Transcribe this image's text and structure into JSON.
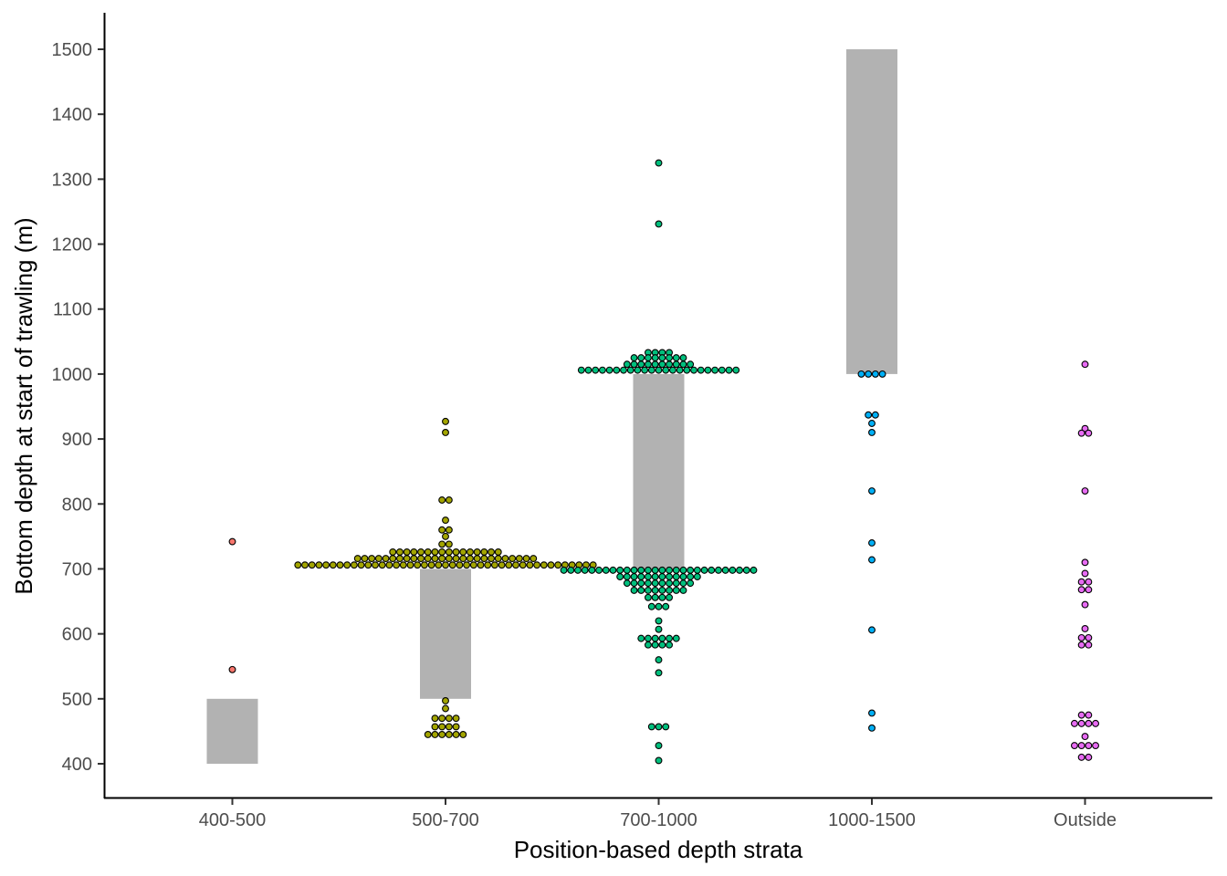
{
  "chart_data": {
    "type": "dotplot",
    "xlabel": "Position-based depth strata",
    "ylabel": "Bottom depth at start of trawling (m)",
    "ylim": [
      345,
      1555
    ],
    "yticks": [
      400,
      500,
      600,
      700,
      800,
      900,
      1000,
      1100,
      1200,
      1300,
      1400,
      1500
    ],
    "grid": false,
    "legend": "none",
    "categories": [
      "400-500",
      "500-700",
      "700-1000",
      "1000-1500",
      "Outside"
    ],
    "strata_ranges": [
      {
        "category": "400-500",
        "low": 400,
        "high": 500
      },
      {
        "category": "500-700",
        "low": 500,
        "high": 700
      },
      {
        "category": "700-1000",
        "low": 700,
        "high": 1000
      },
      {
        "category": "1000-1500",
        "low": 1000,
        "high": 1500
      }
    ],
    "band_color": "#b2b2b2",
    "series": [
      {
        "category": "400-500",
        "color": "#F8766D",
        "points": [
          {
            "y": 742,
            "count": 1
          },
          {
            "y": 545,
            "count": 1
          }
        ]
      },
      {
        "category": "500-700",
        "color": "#A3A500",
        "points": [
          {
            "y": 927,
            "count": 1
          },
          {
            "y": 910,
            "count": 1
          },
          {
            "y": 806,
            "count": 2
          },
          {
            "y": 775,
            "count": 1
          },
          {
            "y": 760,
            "count": 2
          },
          {
            "y": 750,
            "count": 1
          },
          {
            "y": 738,
            "count": 2
          },
          {
            "y": 726,
            "count": 16
          },
          {
            "y": 716,
            "count": 26
          },
          {
            "y": 706,
            "count": 43
          },
          {
            "y": 497,
            "count": 1
          },
          {
            "y": 485,
            "count": 1
          },
          {
            "y": 470,
            "count": 4
          },
          {
            "y": 457,
            "count": 4
          },
          {
            "y": 445,
            "count": 6
          }
        ]
      },
      {
        "category": "700-1000",
        "color": "#00BF7D",
        "points": [
          {
            "y": 1325,
            "count": 1
          },
          {
            "y": 1231,
            "count": 1
          },
          {
            "y": 1033,
            "count": 4
          },
          {
            "y": 1025,
            "count": 8
          },
          {
            "y": 1015,
            "count": 10
          },
          {
            "y": 1006,
            "count": 23
          },
          {
            "y": 698,
            "count": 28
          },
          {
            "y": 688,
            "count": 12
          },
          {
            "y": 678,
            "count": 10
          },
          {
            "y": 667,
            "count": 8
          },
          {
            "y": 656,
            "count": 4
          },
          {
            "y": 642,
            "count": 3
          },
          {
            "y": 620,
            "count": 1
          },
          {
            "y": 607,
            "count": 1
          },
          {
            "y": 593,
            "count": 6
          },
          {
            "y": 583,
            "count": 4
          },
          {
            "y": 560,
            "count": 1
          },
          {
            "y": 540,
            "count": 1
          },
          {
            "y": 457,
            "count": 3
          },
          {
            "y": 428,
            "count": 1
          },
          {
            "y": 405,
            "count": 1
          }
        ]
      },
      {
        "category": "1000-1500",
        "color": "#00B0F6",
        "points": [
          {
            "y": 1000,
            "count": 4
          },
          {
            "y": 937,
            "count": 2
          },
          {
            "y": 924,
            "count": 1
          },
          {
            "y": 910,
            "count": 1
          },
          {
            "y": 820,
            "count": 1
          },
          {
            "y": 740,
            "count": 1
          },
          {
            "y": 714,
            "count": 1
          },
          {
            "y": 606,
            "count": 1
          },
          {
            "y": 478,
            "count": 1
          },
          {
            "y": 455,
            "count": 1
          }
        ]
      },
      {
        "category": "Outside",
        "color": "#E76BF3",
        "points": [
          {
            "y": 1015,
            "count": 1
          },
          {
            "y": 916,
            "count": 1
          },
          {
            "y": 909,
            "count": 2
          },
          {
            "y": 820,
            "count": 1
          },
          {
            "y": 710,
            "count": 1
          },
          {
            "y": 693,
            "count": 1
          },
          {
            "y": 680,
            "count": 2
          },
          {
            "y": 668,
            "count": 2
          },
          {
            "y": 645,
            "count": 1
          },
          {
            "y": 608,
            "count": 1
          },
          {
            "y": 594,
            "count": 2
          },
          {
            "y": 583,
            "count": 2
          },
          {
            "y": 475,
            "count": 2
          },
          {
            "y": 462,
            "count": 4
          },
          {
            "y": 442,
            "count": 1
          },
          {
            "y": 428,
            "count": 4
          },
          {
            "y": 410,
            "count": 2
          }
        ]
      }
    ]
  }
}
